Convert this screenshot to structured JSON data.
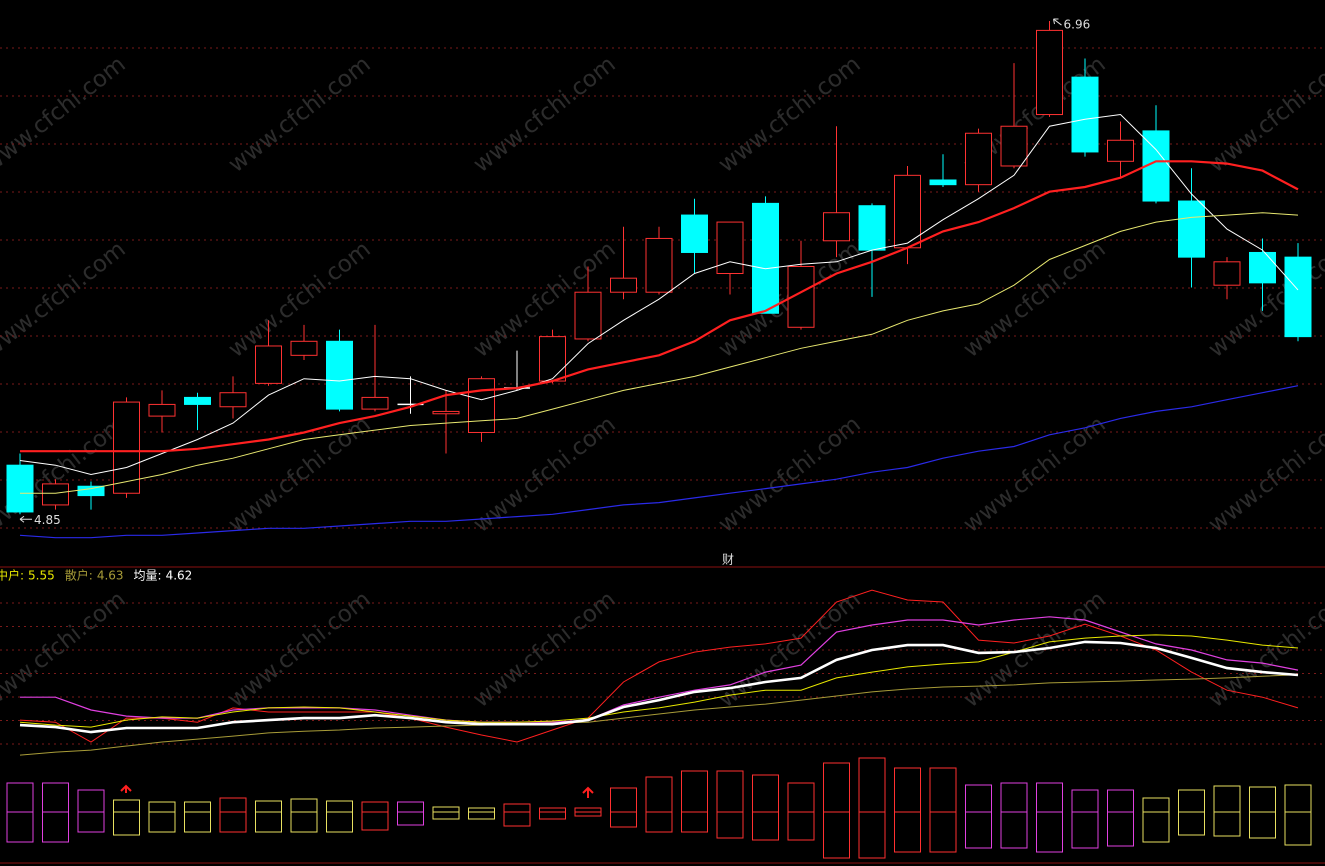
{
  "watermark": "www.cfchi.com",
  "chart_data": [
    {
      "type": "candlestick",
      "open": [
        5.06,
        4.89,
        4.97,
        4.94,
        5.27,
        5.35,
        5.31,
        5.41,
        5.53,
        5.59,
        5.3,
        5.32,
        5.28,
        5.2,
        5.39,
        5.42,
        5.6,
        5.8,
        5.8,
        6.13,
        5.88,
        6.18,
        5.65,
        6.02,
        6.17,
        5.99,
        6.28,
        6.26,
        6.34,
        6.56,
        6.72,
        6.36,
        6.49,
        6.19,
        5.83,
        5.97,
        5.95
      ],
      "high": [
        5.11,
        5.0,
        4.99,
        5.35,
        5.38,
        5.37,
        5.44,
        5.68,
        5.66,
        5.64,
        5.66,
        5.44,
        5.38,
        5.44,
        5.55,
        5.64,
        5.91,
        6.08,
        6.08,
        6.2,
        6.1,
        6.21,
        6.02,
        6.51,
        6.18,
        6.34,
        6.39,
        6.5,
        6.78,
        6.96,
        6.8,
        6.53,
        6.6,
        6.33,
        5.95,
        6.03,
        6.01
      ],
      "low": [
        4.85,
        4.87,
        4.87,
        4.92,
        5.2,
        5.21,
        5.26,
        5.4,
        5.51,
        5.29,
        5.29,
        5.28,
        5.11,
        5.16,
        5.38,
        5.41,
        5.59,
        5.77,
        5.79,
        5.88,
        5.79,
        5.71,
        5.64,
        5.95,
        5.78,
        5.92,
        6.25,
        6.23,
        6.33,
        6.55,
        6.38,
        6.29,
        6.18,
        5.82,
        5.77,
        5.72,
        5.59
      ],
      "close": [
        4.86,
        4.98,
        4.93,
        5.33,
        5.32,
        5.32,
        5.37,
        5.57,
        5.59,
        5.3,
        5.35,
        5.32,
        5.29,
        5.43,
        5.39,
        5.61,
        5.8,
        5.86,
        6.03,
        5.97,
        6.1,
        5.71,
        5.91,
        6.14,
        5.98,
        6.3,
        6.26,
        6.48,
        6.51,
        6.92,
        6.4,
        6.45,
        6.19,
        5.95,
        5.93,
        5.84,
        5.61
      ],
      "up_color": "#ff3232",
      "down_color": "#00ffff",
      "flat_color": "#ffffff",
      "ylim": [
        4.74,
        7.05
      ],
      "high_label": 6.96,
      "low_label": 4.85,
      "series": [
        {
          "color": "#ffffff",
          "width": 1,
          "values": [
            5.08,
            5.06,
            5.02,
            5.05,
            5.11,
            5.17,
            5.24,
            5.36,
            5.43,
            5.42,
            5.44,
            5.43,
            5.38,
            5.34,
            5.38,
            5.43,
            5.58,
            5.68,
            5.77,
            5.88,
            5.93,
            5.9,
            5.92,
            5.93,
            5.98,
            6.01,
            6.11,
            6.2,
            6.3,
            6.51,
            6.54,
            6.56,
            6.41,
            6.22,
            6.07,
            5.98,
            5.81
          ]
        },
        {
          "color": "#ff2020",
          "width": 2.2,
          "values": [
            5.12,
            5.12,
            5.12,
            5.12,
            5.12,
            5.13,
            5.15,
            5.17,
            5.2,
            5.24,
            5.27,
            5.31,
            5.36,
            5.38,
            5.39,
            5.42,
            5.47,
            5.5,
            5.53,
            5.59,
            5.68,
            5.72,
            5.8,
            5.88,
            5.93,
            5.99,
            6.06,
            6.1,
            6.16,
            6.23,
            6.25,
            6.29,
            6.36,
            6.36,
            6.35,
            6.32,
            6.24
          ]
        },
        {
          "color": "#e8e870",
          "width": 1,
          "values": [
            4.94,
            4.94,
            4.96,
            4.99,
            5.02,
            5.06,
            5.09,
            5.13,
            5.17,
            5.19,
            5.21,
            5.23,
            5.24,
            5.25,
            5.26,
            5.3,
            5.34,
            5.38,
            5.41,
            5.44,
            5.48,
            5.52,
            5.56,
            5.59,
            5.62,
            5.68,
            5.72,
            5.75,
            5.83,
            5.94,
            6.0,
            6.06,
            6.1,
            6.12,
            6.13,
            6.14,
            6.13
          ]
        },
        {
          "color": "#2a2ae8",
          "width": 1.2,
          "values": [
            4.76,
            4.75,
            4.75,
            4.76,
            4.76,
            4.77,
            4.78,
            4.79,
            4.79,
            4.8,
            4.81,
            4.82,
            4.82,
            4.83,
            4.84,
            4.85,
            4.87,
            4.89,
            4.9,
            4.92,
            4.94,
            4.96,
            4.98,
            5.0,
            5.03,
            5.05,
            5.09,
            5.12,
            5.14,
            5.19,
            5.22,
            5.26,
            5.29,
            5.31,
            5.34,
            5.37,
            5.4
          ]
        }
      ]
    },
    {
      "type": "line",
      "title": "财",
      "ylim": [
        1.7,
        8.23
      ],
      "legend": "top-left",
      "series": [
        {
          "color": "#ff2020",
          "width": 1,
          "values": [
            3.07,
            3.0,
            2.32,
            3.14,
            3.14,
            3.0,
            3.49,
            3.35,
            3.35,
            3.35,
            3.35,
            3.14,
            2.83,
            2.56,
            2.32,
            2.73,
            3.14,
            4.38,
            5.07,
            5.41,
            5.58,
            5.69,
            5.89,
            7.13,
            7.54,
            7.2,
            7.13,
            5.82,
            5.72,
            5.96,
            6.37,
            5.96,
            5.48,
            4.72,
            4.1,
            3.86,
            3.49
          ]
        },
        {
          "color": "#e040e0",
          "width": 1.2,
          "values": [
            3.86,
            3.86,
            3.42,
            3.21,
            3.14,
            3.14,
            3.42,
            3.49,
            3.49,
            3.49,
            3.42,
            3.24,
            3.07,
            3.0,
            3.0,
            3.0,
            3.07,
            3.59,
            3.86,
            4.1,
            4.28,
            4.72,
            4.96,
            6.1,
            6.34,
            6.51,
            6.51,
            6.34,
            6.51,
            6.62,
            6.51,
            6.1,
            5.69,
            5.48,
            5.14,
            5.03,
            4.79
          ]
        },
        {
          "name": "中户:",
          "color": "#e8e800",
          "width": 1,
          "values": [
            3.0,
            2.9,
            2.83,
            3.07,
            3.18,
            3.14,
            3.35,
            3.49,
            3.52,
            3.49,
            3.35,
            3.21,
            3.07,
            3.0,
            3.0,
            3.04,
            3.14,
            3.35,
            3.49,
            3.69,
            3.93,
            4.1,
            4.1,
            4.52,
            4.72,
            4.9,
            5.0,
            5.07,
            5.41,
            5.76,
            5.89,
            5.96,
            6.0,
            5.96,
            5.82,
            5.65,
            5.55
          ]
        },
        {
          "name": "散户:",
          "color": "#a89c38",
          "width": 1,
          "values": [
            1.87,
            1.97,
            2.04,
            2.18,
            2.32,
            2.42,
            2.52,
            2.63,
            2.69,
            2.73,
            2.8,
            2.83,
            2.87,
            2.9,
            2.93,
            2.97,
            3.0,
            3.14,
            3.28,
            3.42,
            3.52,
            3.62,
            3.76,
            3.9,
            4.04,
            4.14,
            4.21,
            4.24,
            4.28,
            4.35,
            4.38,
            4.41,
            4.45,
            4.48,
            4.52,
            4.58,
            4.63
          ]
        },
        {
          "name": "均量:",
          "color": "#ffffff",
          "width": 2.6,
          "values": [
            2.9,
            2.83,
            2.66,
            2.8,
            2.8,
            2.8,
            3.0,
            3.07,
            3.14,
            3.14,
            3.24,
            3.14,
            3.0,
            2.93,
            2.93,
            2.93,
            3.07,
            3.52,
            3.76,
            4.04,
            4.17,
            4.38,
            4.52,
            5.14,
            5.48,
            5.65,
            5.65,
            5.38,
            5.41,
            5.55,
            5.76,
            5.72,
            5.55,
            5.21,
            4.86,
            4.72,
            4.62
          ]
        }
      ]
    },
    {
      "type": "bar",
      "ylim": [
        -5.0,
        5.6
      ],
      "colors": [
        "#e040e0",
        "#e040e0",
        "#e040e0",
        "#e8e060",
        "#e8e060",
        "#e8e060",
        "#ff3030",
        "#e8e060",
        "#e8e060",
        "#e8e060",
        "#ff3030",
        "#e040e0",
        "#e8e060",
        "#e8e060",
        "#ff3030",
        "#ff3030",
        "#ff3030",
        "#ff3030",
        "#ff3030",
        "#ff3030",
        "#ff3030",
        "#ff3030",
        "#ff3030",
        "#ff3030",
        "#ff3030",
        "#ff3030",
        "#ff3030",
        "#e040e0",
        "#e040e0",
        "#e040e0",
        "#e040e0",
        "#e040e0",
        "#e8e060",
        "#e8e060",
        "#e8e060",
        "#e8e060",
        "#e8e060"
      ],
      "series": [
        {
          "values": [
            2.9,
            2.9,
            2.2,
            1.2,
            1.0,
            1.0,
            1.4,
            1.1,
            1.3,
            1.1,
            1.0,
            1.0,
            0.5,
            0.4,
            0.8,
            0.4,
            0.4,
            2.4,
            3.5,
            4.1,
            4.1,
            3.7,
            2.9,
            4.9,
            5.4,
            4.4,
            4.4,
            2.7,
            2.9,
            2.9,
            2.2,
            2.2,
            1.4,
            2.2,
            2.6,
            2.5,
            2.7
          ]
        },
        {
          "values": [
            -3.0,
            -3.0,
            -2.0,
            -2.3,
            -2.0,
            -2.0,
            -2.0,
            -2.0,
            -2.0,
            -2.0,
            -1.8,
            -1.3,
            -0.7,
            -0.7,
            -1.4,
            -0.7,
            -0.4,
            -1.5,
            -2.0,
            -2.0,
            -2.6,
            -2.8,
            -2.8,
            -4.6,
            -4.6,
            -4.0,
            -4.0,
            -3.6,
            -3.6,
            -4.0,
            -3.6,
            -3.4,
            -3.0,
            -2.3,
            -2.4,
            -2.6,
            -3.3
          ]
        }
      ]
    }
  ]
}
